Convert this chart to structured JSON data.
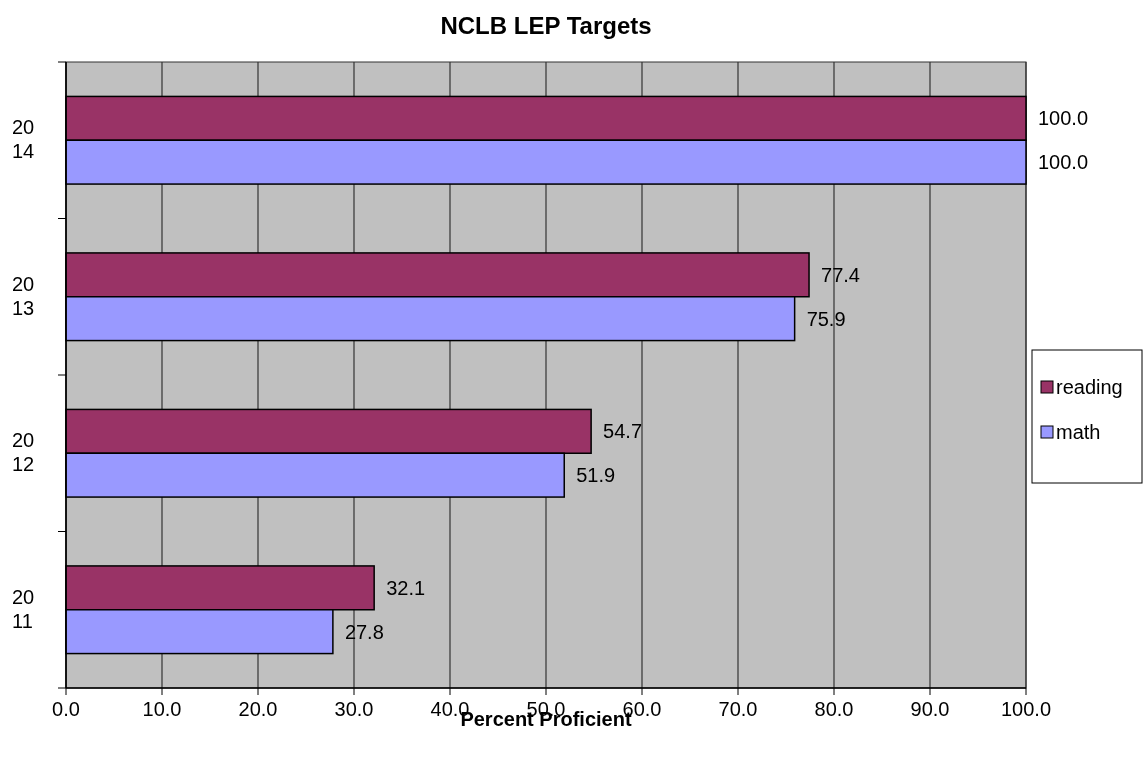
{
  "chart_data": {
    "type": "bar",
    "orientation": "horizontal",
    "title": "NCLB LEP Targets",
    "xlabel": "Percent Proficient",
    "categories": [
      "2014",
      "2013",
      "2012",
      "2011"
    ],
    "series": [
      {
        "name": "reading",
        "color": "#993366",
        "values": [
          100.0,
          77.4,
          54.7,
          32.1
        ],
        "value_labels": [
          "100.0",
          "77.4",
          "54.7",
          "32.1"
        ]
      },
      {
        "name": "math",
        "color": "#9999ff",
        "values": [
          100.0,
          75.9,
          51.9,
          27.8
        ],
        "value_labels": [
          "100.0",
          "75.9",
          "51.9",
          "27.8"
        ]
      }
    ],
    "xlim": [
      0,
      100
    ],
    "xticks": [
      {
        "value": 0,
        "label": "0.0"
      },
      {
        "value": 10,
        "label": "10.0"
      },
      {
        "value": 20,
        "label": "20.0"
      },
      {
        "value": 30,
        "label": "30.0"
      },
      {
        "value": 40,
        "label": "40.0"
      },
      {
        "value": 50,
        "label": "50.0"
      },
      {
        "value": 60,
        "label": "60.0"
      },
      {
        "value": 70,
        "label": "70.0"
      },
      {
        "value": 80,
        "label": "80.0"
      },
      {
        "value": 90,
        "label": "90.0"
      },
      {
        "value": 100,
        "label": "100.0"
      }
    ],
    "grid": "x",
    "legend": "right"
  }
}
